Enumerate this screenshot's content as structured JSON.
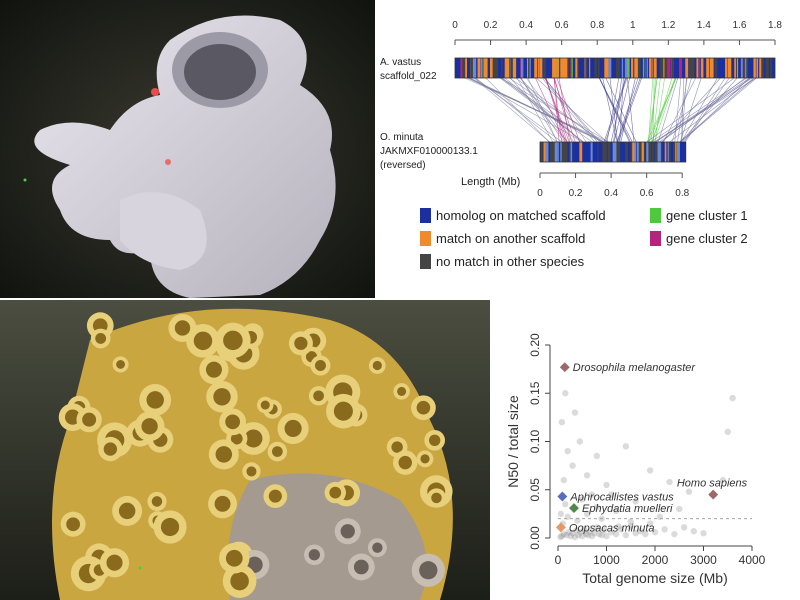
{
  "synteny": {
    "top_label_line1": "A. vastus",
    "top_label_line2": "scaffold_022",
    "bottom_label_line1": "O. minuta",
    "bottom_label_line2": "JAKMXF010000133.1",
    "bottom_label_line3": "(reversed)",
    "length_label": "Length (Mb)",
    "top_ticks": [
      "0",
      "0.2",
      "0.4",
      "0.6",
      "0.8",
      "1",
      "1.2",
      "1.4",
      "1.6",
      "1.8"
    ],
    "bottom_ticks": [
      "0",
      "0.2",
      "0.4",
      "0.6",
      "0.8"
    ],
    "legend": [
      {
        "label": "homolog on matched scaffold",
        "color": "#1a2fa0"
      },
      {
        "label": "gene cluster 1",
        "color": "#4ec93e"
      },
      {
        "label": "match on another scaffold",
        "color": "#f08a2c"
      },
      {
        "label": "gene cluster 2",
        "color": "#b3257d"
      },
      {
        "label": "no match in other species",
        "color": "#444444"
      }
    ]
  },
  "chart_data": {
    "type": "scatter",
    "xlabel": "Total genome size (Mb)",
    "ylabel": "N50 / total size",
    "xlim": [
      0,
      4000
    ],
    "ylim": [
      0,
      0.2
    ],
    "xticks": [
      "0",
      "1000",
      "2000",
      "3000",
      "4000"
    ],
    "yticks": [
      "0.00",
      "0.05",
      "0.10",
      "0.15",
      "0.20"
    ],
    "reference_line_y": 0.02,
    "highlighted": [
      {
        "name": "Drosophila melanogaster",
        "x": 140,
        "y": 0.177,
        "color": "#9a6a6a"
      },
      {
        "name": "Homo sapiens",
        "x": 3200,
        "y": 0.045,
        "color": "#9a6a6a"
      },
      {
        "name": "Aphrocallistes vastus",
        "x": 90,
        "y": 0.043,
        "color": "#5a6ec0"
      },
      {
        "name": "Ephydatia muelleri",
        "x": 330,
        "y": 0.031,
        "color": "#4e8a4e"
      },
      {
        "name": "Oopsacas minuta",
        "x": 60,
        "y": 0.011,
        "color": "#e39a6a"
      }
    ],
    "background_points": [
      [
        50,
        0.001
      ],
      [
        80,
        0.002
      ],
      [
        120,
        0.004
      ],
      [
        180,
        0.003
      ],
      [
        220,
        0.006
      ],
      [
        260,
        0.002
      ],
      [
        300,
        0.005
      ],
      [
        350,
        0.001
      ],
      [
        380,
        0.008
      ],
      [
        420,
        0.003
      ],
      [
        460,
        0.006
      ],
      [
        500,
        0.002
      ],
      [
        540,
        0.009
      ],
      [
        580,
        0.004
      ],
      [
        620,
        0.003
      ],
      [
        660,
        0.007
      ],
      [
        700,
        0.002
      ],
      [
        750,
        0.005
      ],
      [
        800,
        0.011
      ],
      [
        850,
        0.004
      ],
      [
        900,
        0.003
      ],
      [
        950,
        0.008
      ],
      [
        1000,
        0.002
      ],
      [
        1100,
        0.006
      ],
      [
        1200,
        0.004
      ],
      [
        1300,
        0.009
      ],
      [
        1400,
        0.003
      ],
      [
        1500,
        0.012
      ],
      [
        1600,
        0.005
      ],
      [
        1700,
        0.007
      ],
      [
        1800,
        0.004
      ],
      [
        1900,
        0.015
      ],
      [
        2000,
        0.006
      ],
      [
        2200,
        0.009
      ],
      [
        2400,
        0.004
      ],
      [
        2600,
        0.011
      ],
      [
        2800,
        0.007
      ],
      [
        3000,
        0.005
      ],
      [
        100,
        0.015
      ],
      [
        200,
        0.022
      ],
      [
        400,
        0.018
      ],
      [
        600,
        0.025
      ],
      [
        900,
        0.02
      ],
      [
        1200,
        0.028
      ],
      [
        1500,
        0.017
      ],
      [
        2100,
        0.022
      ],
      [
        150,
        0.035
      ],
      [
        500,
        0.04
      ],
      [
        800,
        0.032
      ],
      [
        1100,
        0.045
      ],
      [
        1600,
        0.038
      ],
      [
        2500,
        0.03
      ],
      [
        2700,
        0.048
      ],
      [
        120,
        0.06
      ],
      [
        300,
        0.075
      ],
      [
        600,
        0.065
      ],
      [
        1000,
        0.055
      ],
      [
        1900,
        0.07
      ],
      [
        2300,
        0.058
      ],
      [
        3400,
        0.06
      ],
      [
        200,
        0.09
      ],
      [
        450,
        0.1
      ],
      [
        800,
        0.085
      ],
      [
        1400,
        0.095
      ],
      [
        3500,
        0.11
      ],
      [
        3600,
        0.145
      ],
      [
        150,
        0.15
      ],
      [
        80,
        0.12
      ],
      [
        350,
        0.13
      ],
      [
        60,
        0.025
      ],
      [
        700,
        0.045
      ],
      [
        1250,
        0.012
      ]
    ]
  }
}
